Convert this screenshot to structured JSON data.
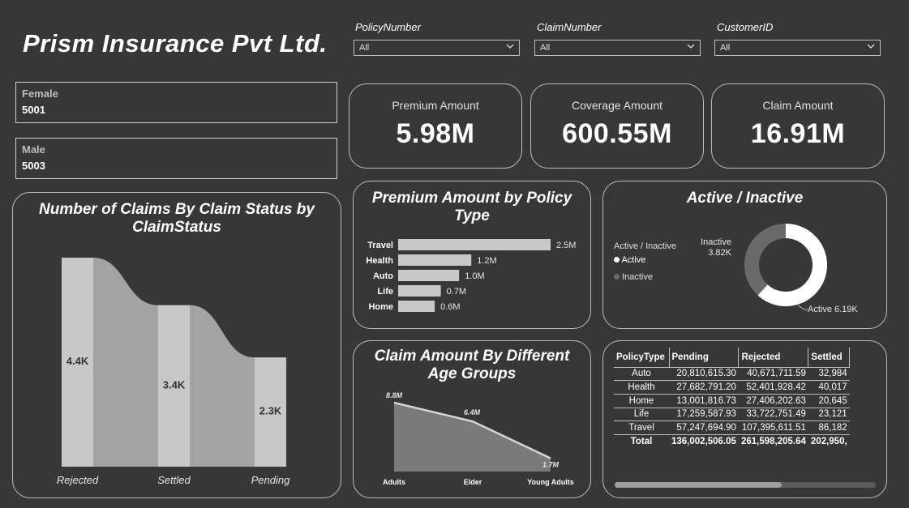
{
  "app": {
    "title": "Prism Insurance Pvt Ltd."
  },
  "slicers": [
    {
      "label": "PolicyNumber",
      "value": "All"
    },
    {
      "label": "ClaimNumber",
      "value": "All"
    },
    {
      "label": "CustomerID",
      "value": "All"
    }
  ],
  "gender": [
    {
      "label": "Female",
      "value": "5001"
    },
    {
      "label": "Male",
      "value": "5003"
    }
  ],
  "kpis": [
    {
      "label": "Premium Amount",
      "value": "5.98M"
    },
    {
      "label": "Coverage Amount",
      "value": "600.55M"
    },
    {
      "label": "Claim Amount",
      "value": "16.91M"
    }
  ],
  "colors": {
    "background": "#373737",
    "bar": "#c8c8c8",
    "ribbon": "#a3a3a3",
    "area": "#7a7a7a",
    "active": "#ffffff",
    "inactive": "#6a6a6a"
  },
  "claims_by_status": {
    "title": "Number of Claims By Claim Status by ClaimStatus",
    "chart_data": {
      "type": "bar",
      "categories": [
        "Rejected",
        "Settled",
        "Pending"
      ],
      "values": [
        4400,
        3400,
        2300
      ],
      "value_labels": [
        "4.4K",
        "3.4K",
        "2.3K"
      ],
      "ylim": [
        0,
        4400
      ],
      "legend": "none"
    }
  },
  "premium_by_policy": {
    "title": "Premium Amount by Policy Type",
    "chart_data": {
      "type": "bar",
      "orientation": "horizontal",
      "categories": [
        "Travel",
        "Health",
        "Auto",
        "Life",
        "Home"
      ],
      "values": [
        2.5,
        1.2,
        1.0,
        0.7,
        0.6
      ],
      "value_labels": [
        "2.5M",
        "1.2M",
        "1.0M",
        "0.7M",
        "0.6M"
      ],
      "xlim": [
        0,
        2.5
      ]
    }
  },
  "active_inactive": {
    "title": "Active / Inactive",
    "legend_title": "Active / Inactive",
    "chart_data": {
      "type": "pie",
      "donut": true,
      "labels": [
        "Active",
        "Inactive"
      ],
      "values": [
        6190,
        3820
      ],
      "slice_labels": [
        "Active 6.19K",
        "Inactive 3.82K"
      ],
      "legend": "left"
    }
  },
  "claim_by_age": {
    "title": "Claim Amount By Different Age Groups",
    "chart_data": {
      "type": "area",
      "categories": [
        "Adults",
        "Elder",
        "Young Adults"
      ],
      "values": [
        8.8,
        6.4,
        1.7
      ],
      "value_labels": [
        "8.8M",
        "6.4M",
        "1.7M"
      ],
      "ylim": [
        0,
        8.8
      ]
    }
  },
  "policy_table": {
    "columns": [
      "PolicyType",
      "Pending",
      "Rejected",
      "Settled"
    ],
    "rows": [
      [
        "Auto",
        "20,810,615.30",
        "40,671,711.59",
        "32,984"
      ],
      [
        "Health",
        "27,682,791.20",
        "52,401,928.42",
        "40,017"
      ],
      [
        "Home",
        "13,001,816.73",
        "27,406,202.63",
        "20,645"
      ],
      [
        "Life",
        "17,259,587.93",
        "33,722,751.49",
        "23,121"
      ],
      [
        "Travel",
        "57,247,694.90",
        "107,395,611.51",
        "86,182"
      ]
    ],
    "total": [
      "Total",
      "136,002,506.05",
      "261,598,205.64",
      "202,950,"
    ],
    "scroll_fraction": 0.64
  }
}
